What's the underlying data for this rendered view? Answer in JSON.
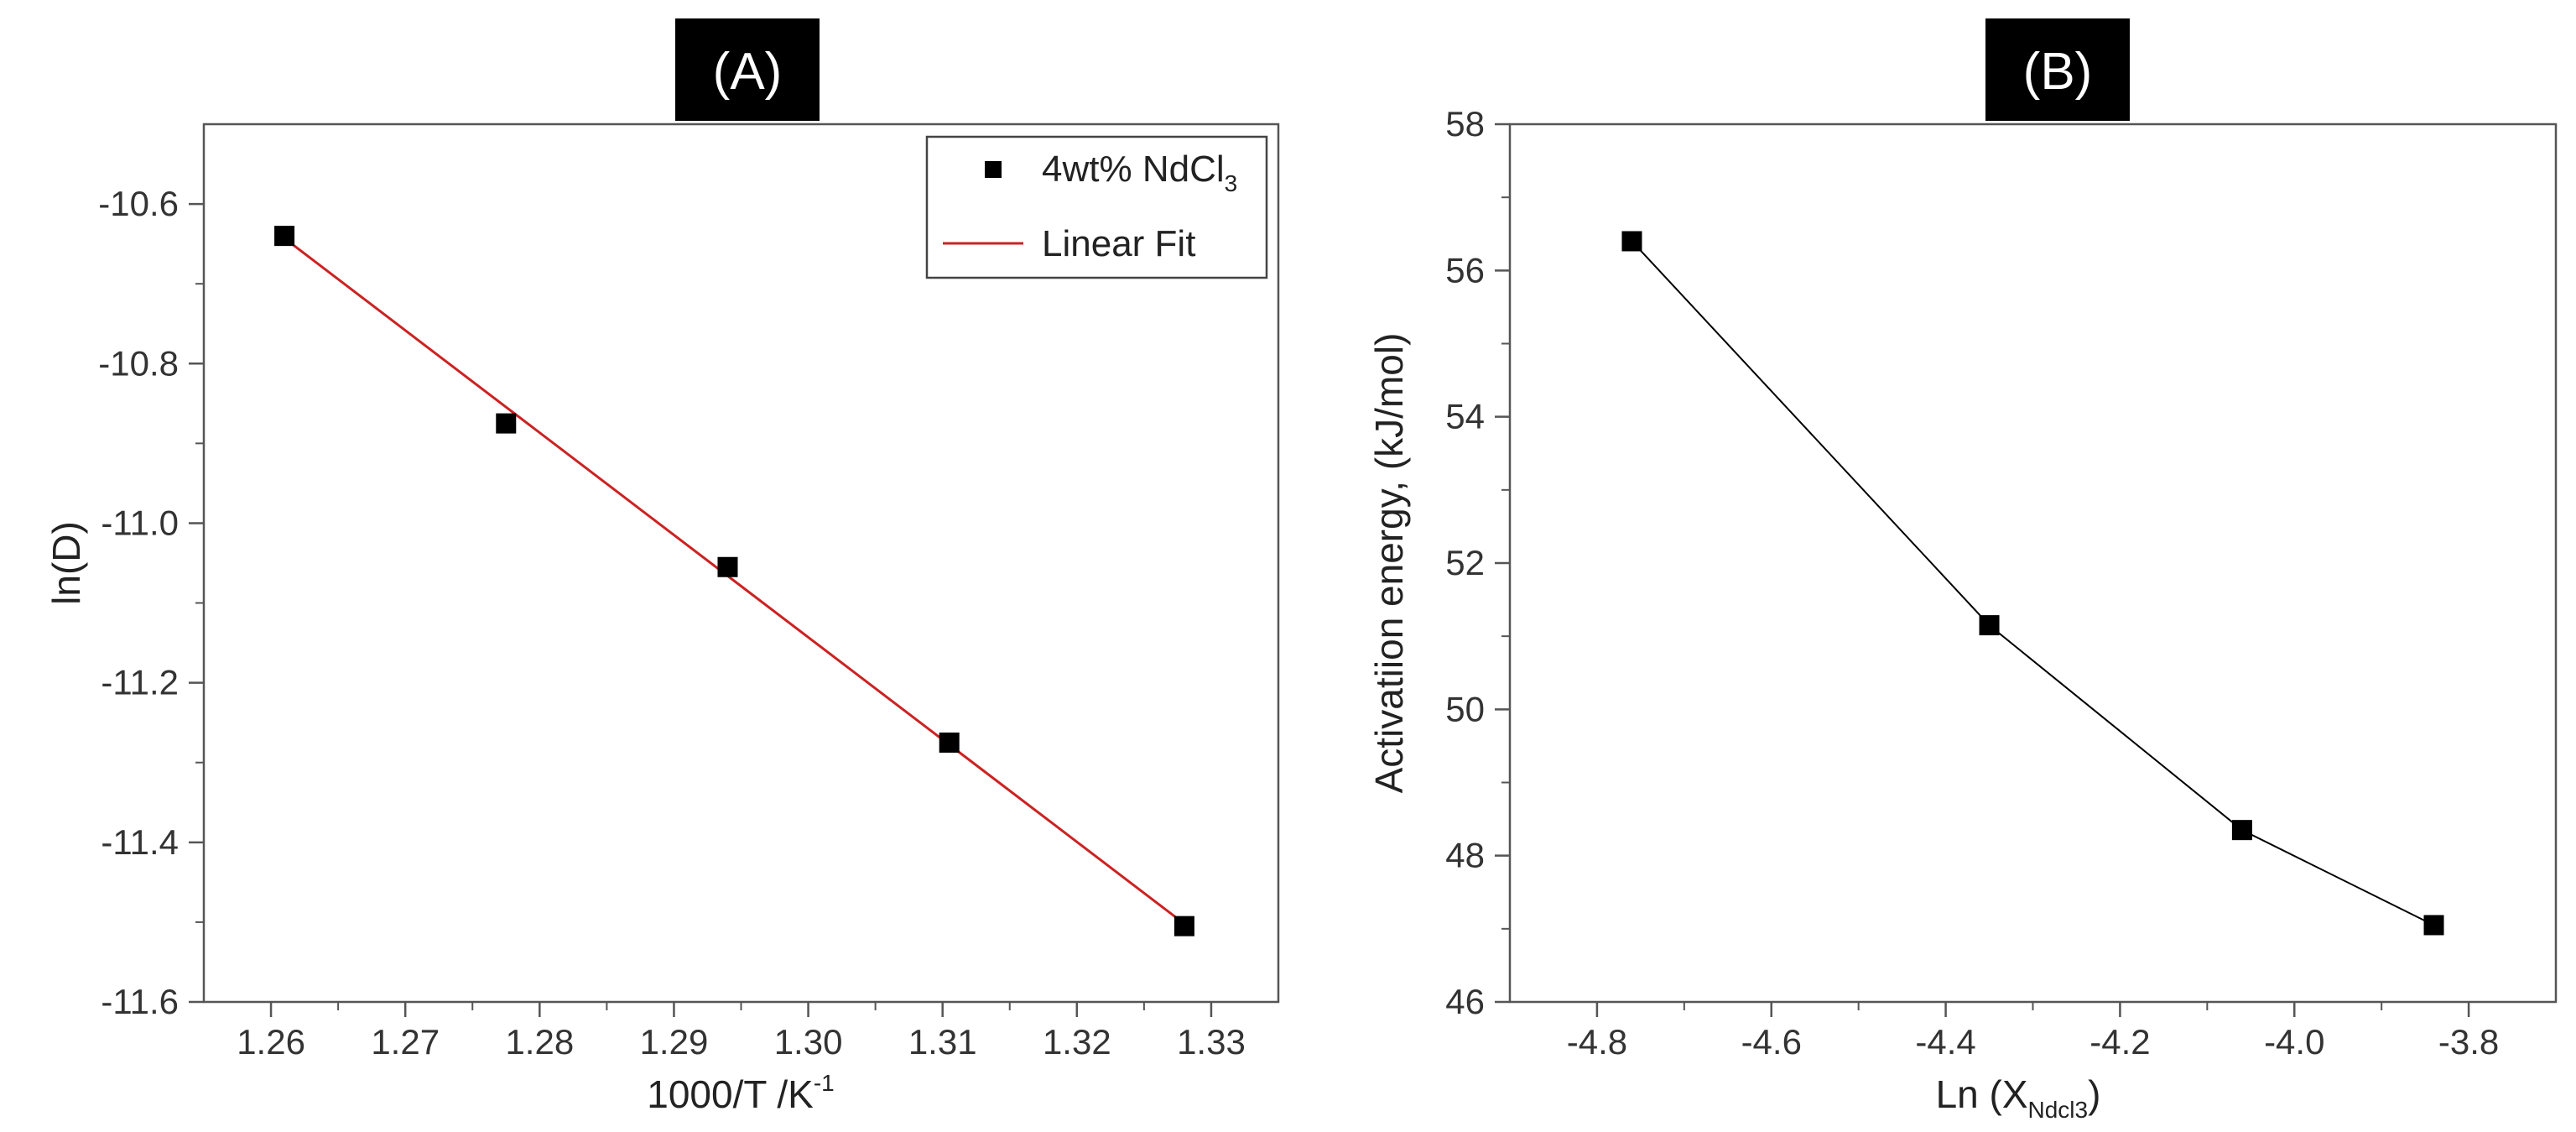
{
  "chart_data": [
    {
      "panel_label": "(A)",
      "type": "scatter",
      "xlabel": "1000/T /K",
      "xlabel_sup": "-1",
      "ylabel": "ln(D)",
      "xlim": [
        1.255,
        1.335
      ],
      "ylim": [
        -11.6,
        -10.5
      ],
      "xticks": [
        1.26,
        1.27,
        1.28,
        1.29,
        1.3,
        1.31,
        1.32,
        1.33
      ],
      "xtick_labels": [
        "1.26",
        "1.27",
        "1.28",
        "1.29",
        "1.30",
        "1.31",
        "1.32",
        "1.33"
      ],
      "yticks": [
        -10.6,
        -10.8,
        -11.0,
        -11.2,
        -11.4,
        -11.6
      ],
      "ytick_labels": [
        "-10.6",
        "-10.8",
        "-11.0",
        "-11.2",
        "-11.4",
        "-11.6"
      ],
      "legend_position": "top-right",
      "series": [
        {
          "name": "4wt% NdCl",
          "name_sub": "3",
          "kind": "scatter",
          "marker": "square",
          "color": "#000000",
          "x": [
            1.261,
            1.2775,
            1.294,
            1.3105,
            1.328
          ],
          "y": [
            -10.64,
            -10.875,
            -11.055,
            -11.275,
            -11.505
          ]
        },
        {
          "name": "Linear Fit",
          "kind": "line",
          "color": "#cc2222",
          "x": [
            1.261,
            1.328
          ],
          "y": [
            -10.643,
            -11.502
          ]
        }
      ]
    },
    {
      "panel_label": "(B)",
      "type": "line",
      "xlabel": "Ln (X",
      "xlabel_sub": "Ndcl3",
      "xlabel_close": ")",
      "ylabel": "Activatiion energy, (kJ/mol)",
      "xlim": [
        -4.9,
        -3.7
      ],
      "ylim": [
        46,
        58
      ],
      "xticks": [
        -4.8,
        -4.6,
        -4.4,
        -4.2,
        -4.0,
        -3.8
      ],
      "xtick_labels": [
        "-4.8",
        "-4.6",
        "-4.4",
        "-4.2",
        "-4.0",
        "-3.8"
      ],
      "yticks": [
        46,
        48,
        50,
        52,
        54,
        56,
        58
      ],
      "ytick_labels": [
        "46",
        "48",
        "50",
        "52",
        "54",
        "56",
        "58"
      ],
      "series": [
        {
          "kind": "line",
          "marker": "square",
          "color": "#000000",
          "x": [
            -4.76,
            -4.35,
            -4.06,
            -3.84
          ],
          "y": [
            56.4,
            51.15,
            48.35,
            47.05
          ]
        }
      ]
    }
  ]
}
